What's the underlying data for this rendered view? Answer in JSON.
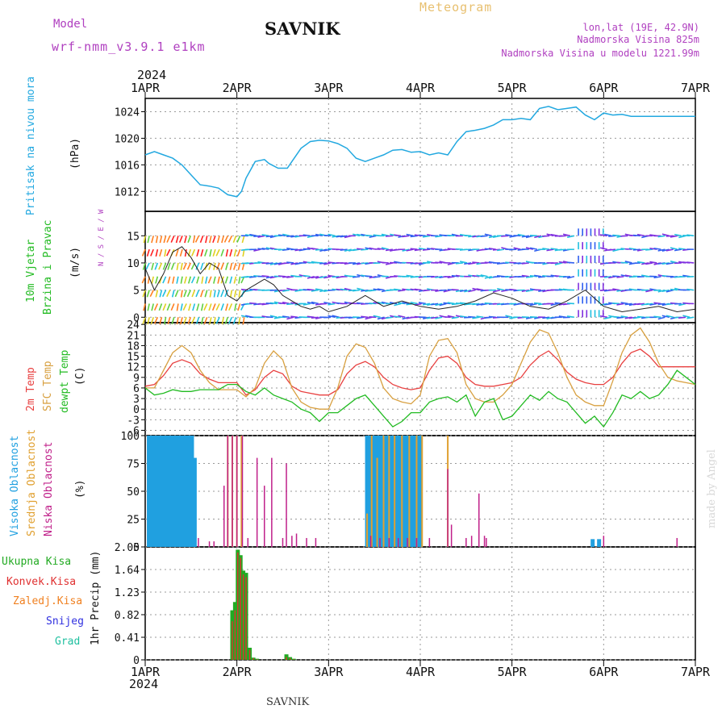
{
  "header": {
    "model_label": "Model",
    "model_name": "wrf-nmm_v3.9.1 e1km",
    "station": "SAVNIK",
    "title": "Meteogram",
    "lonlat": "lon,lat (19E, 42.9N)",
    "elevation": "Nadmorska Visina 825m",
    "model_elevation": "Nadmorska Visina u modelu 1221.99m",
    "year_top": "2024",
    "year_bottom": "2024",
    "footer_station": "SAVNIK",
    "credit": "made by Angel"
  },
  "colors": {
    "pressure": "#22a8e0",
    "wind_label": "#22bb22",
    "t2m": "#e84040",
    "sfc": "#d8a040",
    "dewpt": "#22bb22",
    "high_cloud": "#20a0e0",
    "mid_cloud": "#e0a030",
    "low_cloud": "#c0208a",
    "total_precip": "#22aa22",
    "conv_precip": "#e03030",
    "frz_precip": "#f08020",
    "snow": "#3030e0",
    "hail": "#20c0a0",
    "purple": "#b040c0"
  },
  "chart_data": [
    {
      "type": "line",
      "panel": "pressure",
      "ylabel": "Pritisak na nivou mora",
      "units": "(hPa)",
      "yticks": [
        1012,
        1016,
        1020,
        1024
      ],
      "ylim": [
        1009,
        1026
      ],
      "x_days": [
        0,
        0.1,
        0.2,
        0.3,
        0.4,
        0.5,
        0.6,
        0.7,
        0.8,
        0.9,
        1.0,
        1.05,
        1.1,
        1.2,
        1.3,
        1.35,
        1.45,
        1.55,
        1.6,
        1.7,
        1.8,
        1.9,
        2.0,
        2.1,
        2.2,
        2.3,
        2.4,
        2.5,
        2.6,
        2.7,
        2.8,
        2.9,
        3.0,
        3.1,
        3.2,
        3.3,
        3.4,
        3.5,
        3.6,
        3.7,
        3.8,
        3.9,
        4.0,
        4.1,
        4.2,
        4.3,
        4.4,
        4.5,
        4.6,
        4.7,
        4.8,
        4.9,
        5.0,
        5.1,
        5.2,
        5.3,
        5.4,
        5.5,
        5.6,
        5.7,
        5.8,
        5.9,
        6.0
      ],
      "values": [
        1017.5,
        1018,
        1017.5,
        1017,
        1016,
        1014.5,
        1013,
        1012.8,
        1012.5,
        1011.5,
        1011.2,
        1012,
        1014,
        1016.5,
        1016.8,
        1016.2,
        1015.5,
        1015.5,
        1016.5,
        1018.5,
        1019.5,
        1019.7,
        1019.6,
        1019.2,
        1018.5,
        1017,
        1016.5,
        1017,
        1017.5,
        1018.2,
        1018.3,
        1017.9,
        1018,
        1017.5,
        1017.8,
        1017.5,
        1019.5,
        1021,
        1021.2,
        1021.5,
        1022,
        1022.8,
        1022.8,
        1023,
        1022.8,
        1024.5,
        1024.8,
        1024.3,
        1024.5,
        1024.7,
        1023.5,
        1022.8,
        1023.8,
        1023.5,
        1023.6,
        1023.3,
        1023.3,
        1023.3,
        1023.3,
        1023.3,
        1023.3,
        1023.3,
        1023.3
      ]
    },
    {
      "type": "line",
      "panel": "wind",
      "ylabel": [
        "10m Vjetar",
        "Brzina i Pravac"
      ],
      "units": "(m/s)",
      "compass": "N / S / E / W",
      "yticks": [
        0,
        5,
        10,
        15
      ],
      "ylim": [
        -1,
        19.5
      ],
      "x_days": [
        0,
        0.1,
        0.2,
        0.3,
        0.4,
        0.5,
        0.6,
        0.7,
        0.8,
        0.9,
        1.0,
        1.1,
        1.2,
        1.3,
        1.4,
        1.5,
        1.6,
        1.7,
        1.8,
        1.9,
        2.0,
        2.2,
        2.4,
        2.6,
        2.8,
        3.0,
        3.2,
        3.4,
        3.6,
        3.8,
        4.0,
        4.2,
        4.4,
        4.6,
        4.8,
        5.0,
        5.2,
        5.4,
        5.6,
        5.8,
        6.0
      ],
      "values": [
        9,
        5,
        8,
        12,
        13,
        11,
        8,
        10,
        9,
        4,
        3,
        5,
        6,
        7,
        6,
        4,
        3,
        2,
        1.5,
        2,
        1,
        2,
        4,
        2,
        3,
        2,
        1.5,
        2,
        3,
        4.5,
        3.5,
        2,
        1.5,
        3,
        5,
        2,
        1,
        1.5,
        2,
        1,
        1.5
      ]
    },
    {
      "type": "line",
      "panel": "temperature",
      "ylabel": [
        "2m Temp",
        "SFC Temp",
        "dewpt Temp"
      ],
      "units": "(C)",
      "yticks": [
        -6,
        -3,
        0,
        3,
        6,
        9,
        12,
        15,
        18,
        21,
        24
      ],
      "ylim": [
        -7.5,
        24.5
      ],
      "x_days": [
        0,
        0.1,
        0.2,
        0.3,
        0.4,
        0.5,
        0.6,
        0.7,
        0.8,
        0.9,
        1.0,
        1.1,
        1.2,
        1.3,
        1.4,
        1.5,
        1.6,
        1.7,
        1.8,
        1.9,
        2.0,
        2.1,
        2.2,
        2.3,
        2.4,
        2.5,
        2.6,
        2.7,
        2.8,
        2.9,
        3.0,
        3.1,
        3.2,
        3.3,
        3.4,
        3.5,
        3.6,
        3.7,
        3.8,
        3.9,
        4.0,
        4.1,
        4.2,
        4.3,
        4.4,
        4.5,
        4.6,
        4.7,
        4.8,
        4.9,
        5.0,
        5.1,
        5.2,
        5.3,
        5.4,
        5.5,
        5.6,
        5.7,
        5.8,
        5.9,
        6.0
      ],
      "series": [
        {
          "name": "2m Temp",
          "values": [
            6.5,
            7,
            9.5,
            13,
            14,
            13,
            10,
            8.5,
            7.5,
            7.5,
            7.5,
            4,
            5.5,
            9,
            11,
            10,
            6.5,
            5,
            4.5,
            4,
            4,
            5.5,
            10,
            12.5,
            13.5,
            12,
            9,
            7,
            6,
            5.5,
            6,
            11,
            14.5,
            15,
            13,
            9,
            7,
            6.5,
            6.5,
            7,
            7.5,
            9,
            12.5,
            15,
            16.5,
            14,
            10.5,
            8.5,
            7.5,
            7,
            7,
            9,
            13,
            16,
            17,
            15,
            12,
            12,
            12,
            12,
            12
          ]
        },
        {
          "name": "SFC Temp",
          "values": [
            6,
            6,
            11,
            16,
            18,
            16,
            11,
            7.5,
            5.5,
            5.5,
            5.5,
            3.5,
            6,
            13,
            16.5,
            14,
            6,
            2,
            0.5,
            0,
            0,
            6,
            15,
            18.5,
            17.5,
            13,
            6,
            3,
            2,
            1.5,
            4,
            15,
            19.5,
            20,
            16,
            7,
            3,
            2,
            2,
            4,
            7,
            13,
            19,
            22.5,
            21.5,
            16,
            9,
            4,
            2,
            1,
            1,
            8,
            16,
            21,
            23,
            19,
            13,
            9,
            8,
            7.5,
            7
          ]
        },
        {
          "name": "dewpt Temp",
          "values": [
            6,
            4,
            4.5,
            5.5,
            5,
            5,
            5.5,
            5.5,
            5.5,
            7,
            7,
            5,
            4,
            6,
            4,
            3,
            2,
            0,
            -1,
            -3.5,
            -1,
            -1,
            1,
            3,
            4,
            1,
            -2,
            -5,
            -3.5,
            -1,
            -1,
            2,
            3,
            3.5,
            2,
            4,
            -2,
            2,
            3,
            -3,
            -2,
            1,
            4,
            2.5,
            5,
            3,
            2,
            -1,
            -4,
            -2,
            -5,
            -1,
            4,
            3,
            5,
            3,
            4,
            7,
            11,
            9,
            7
          ]
        }
      ]
    },
    {
      "type": "bar",
      "panel": "clouds",
      "ylabel": [
        "Visoka Oblacnost",
        "Srednja Oblacnost",
        "Niska Oblacnost"
      ],
      "units": "(%)",
      "yticks": [
        0,
        25,
        50,
        75,
        100
      ],
      "ylim": [
        0,
        100
      ],
      "series": [
        {
          "name": "Visoka Oblacnost",
          "x_days": [
            0.04,
            0.08,
            0.12,
            0.16,
            0.2,
            0.24,
            0.28,
            0.32,
            0.36,
            0.4,
            0.44,
            0.48,
            0.51,
            0.54,
            2.42,
            2.44,
            2.47,
            2.5,
            2.53,
            2.57,
            2.6,
            2.64,
            2.68,
            2.72,
            2.76,
            2.8,
            2.84,
            2.88,
            2.92,
            2.96,
            3.0,
            4.88,
            4.95
          ],
          "values": [
            100,
            100,
            100,
            100,
            100,
            100,
            100,
            100,
            100,
            100,
            100,
            100,
            100,
            80,
            100,
            100,
            100,
            100,
            100,
            100,
            100,
            100,
            100,
            100,
            100,
            100,
            100,
            100,
            100,
            100,
            100,
            7,
            7
          ]
        },
        {
          "name": "Srednja Oblacnost",
          "x_days": [
            0.9,
            0.95,
            1.0,
            1.05,
            2.42,
            2.47,
            2.53,
            2.6,
            2.66,
            2.72,
            2.8,
            2.88,
            2.96,
            3.02,
            3.3
          ],
          "values": [
            100,
            100,
            100,
            100,
            30,
            100,
            80,
            100,
            100,
            100,
            100,
            100,
            100,
            100,
            100
          ]
        },
        {
          "name": "Niska Oblacnost",
          "x_days": [
            0.58,
            0.7,
            0.75,
            0.86,
            0.9,
            0.95,
            1.0,
            1.06,
            1.12,
            1.22,
            1.3,
            1.38,
            1.5,
            1.54,
            1.6,
            1.65,
            1.76,
            1.86,
            2.46,
            2.56,
            2.66,
            2.76,
            2.86,
            2.96,
            3.1,
            3.3,
            3.34,
            3.5,
            3.56,
            3.64,
            3.7,
            3.72,
            5.0,
            5.8
          ],
          "values": [
            8,
            5,
            5,
            55,
            100,
            100,
            100,
            100,
            8,
            80,
            55,
            80,
            8,
            75,
            10,
            12,
            8,
            8,
            10,
            8,
            8,
            8,
            8,
            8,
            8,
            70,
            20,
            8,
            10,
            48,
            10,
            8,
            10,
            8
          ]
        }
      ]
    },
    {
      "type": "bar",
      "panel": "precipitation",
      "ylabel": "1hr Precip (mm)",
      "legend": [
        "Ukupna Kisa",
        "Konvek.Kisa",
        "Zaledj.Kisa",
        "Snijeg",
        "Grad"
      ],
      "yticks": [
        0,
        0.41,
        0.82,
        1.23,
        1.64,
        2.05
      ],
      "ylim": [
        0,
        2.05
      ],
      "x_days": [
        0.95,
        0.98,
        1.01,
        1.04,
        1.07,
        1.1,
        1.14,
        1.18,
        1.22,
        1.54,
        1.58,
        1.62
      ],
      "series": [
        {
          "name": "Ukupna Kisa",
          "values": [
            0.9,
            1.05,
            2.0,
            1.9,
            1.62,
            1.58,
            0.22,
            0.04,
            0.02,
            0.1,
            0.05,
            0.02
          ]
        },
        {
          "name": "Konvek.Kisa",
          "values": [
            0.7,
            0.9,
            1.95,
            1.85,
            1.55,
            1.5,
            0.18,
            0.03,
            0.01,
            0.05,
            0.03,
            0.01
          ]
        }
      ]
    }
  ],
  "x_axis": {
    "labels": [
      "1APR",
      "2APR",
      "3APR",
      "4APR",
      "5APR",
      "6APR",
      "7APR"
    ],
    "days": 6
  }
}
